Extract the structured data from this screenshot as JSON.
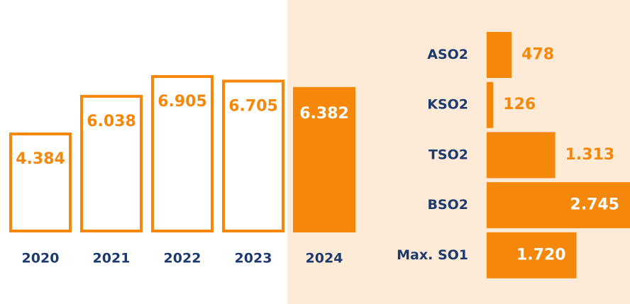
{
  "chart_data": [
    {
      "type": "bar",
      "categories": [
        "2020",
        "2021",
        "2022",
        "2023",
        "2024"
      ],
      "values": [
        4384,
        6038,
        6905,
        6705,
        6382
      ],
      "value_labels": [
        "4.384",
        "6.038",
        "6.905",
        "6.705",
        "6.382"
      ],
      "colors": [
        "#ffffff",
        "#ffffff",
        "#ffffff",
        "#ffffff",
        "#f5870a"
      ],
      "outline": "#f5870a"
    },
    {
      "type": "hbar",
      "categories": [
        "ASO2",
        "KSO2",
        "TSO2",
        "BSO2",
        "Max. SO1"
      ],
      "values": [
        478,
        126,
        1313,
        2745,
        1720
      ],
      "value_labels": [
        "478",
        "126",
        "1.313",
        "2.745",
        "1.720"
      ],
      "color": "#f5870a",
      "background": "#fdebd8"
    }
  ]
}
